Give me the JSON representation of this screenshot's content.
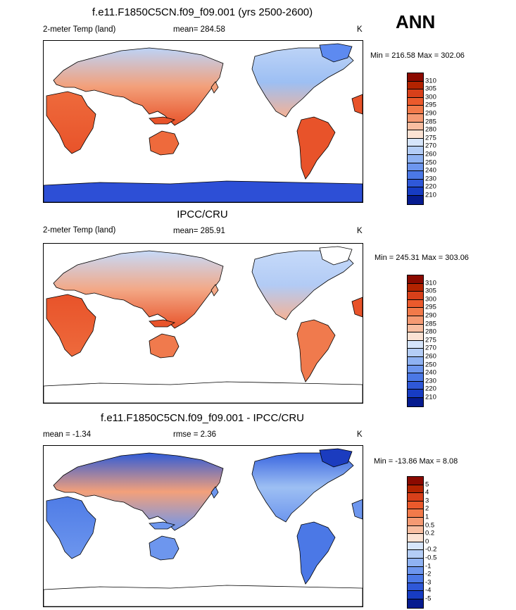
{
  "season": "ANN",
  "panels": [
    {
      "title": "f.e11.F1850C5CN.f09_f09.001 (yrs 2500-2600)",
      "variable": "2-meter Temp (land)",
      "stat1": "mean= 284.58",
      "stat2": "",
      "units": "K",
      "minmax": "Min = 216.58 Max = 302.06",
      "colorbar": {
        "labels": [
          "310",
          "305",
          "300",
          "295",
          "290",
          "285",
          "280",
          "275",
          "270",
          "260",
          "250",
          "240",
          "230",
          "220",
          "210"
        ],
        "colors": [
          "#8b0a00",
          "#b32300",
          "#d8401a",
          "#eb5a2c",
          "#f27a4a",
          "#f59a73",
          "#f8bea1",
          "#fbe2d3",
          "#d6e5fb",
          "#b4cdf6",
          "#8fb2f2",
          "#6d96ee",
          "#4b78e6",
          "#2f58d8",
          "#173cc3",
          "#061b8f"
        ]
      },
      "map_style": "model"
    },
    {
      "title": "IPCC/CRU",
      "variable": "2-meter Temp (land)",
      "stat1": "mean= 285.91",
      "stat2": "",
      "units": "K",
      "minmax": "Min = 245.31 Max = 303.06",
      "colorbar": {
        "labels": [
          "310",
          "305",
          "300",
          "295",
          "290",
          "285",
          "280",
          "275",
          "270",
          "260",
          "250",
          "240",
          "230",
          "220",
          "210"
        ],
        "colors": [
          "#8b0a00",
          "#b32300",
          "#d8401a",
          "#eb5a2c",
          "#f27a4a",
          "#f59a73",
          "#f8bea1",
          "#fbe2d3",
          "#d6e5fb",
          "#b4cdf6",
          "#8fb2f2",
          "#6d96ee",
          "#4b78e6",
          "#2f58d8",
          "#173cc3",
          "#061b8f"
        ]
      },
      "map_style": "obs"
    },
    {
      "title": "f.e11.F1850C5CN.f09_f09.001 - IPCC/CRU",
      "variable": "",
      "stat1": "mean =  -1.34",
      "stat2": "rmse =   2.36",
      "units": "K",
      "minmax": "Min = -13.86 Max =   8.08",
      "colorbar": {
        "labels": [
          "5",
          "4",
          "3",
          "2",
          "1",
          "0.5",
          "0.2",
          "0",
          "-0.2",
          "-0.5",
          "-1",
          "-2",
          "-3",
          "-4",
          "-5"
        ],
        "colors": [
          "#8b0a00",
          "#b32300",
          "#d8401a",
          "#eb5a2c",
          "#f27a4a",
          "#f59a73",
          "#f8bea1",
          "#fbe2d3",
          "#d6e5fb",
          "#b4cdf6",
          "#8fb2f2",
          "#6d96ee",
          "#4b78e6",
          "#2f58d8",
          "#173cc3",
          "#061b8f"
        ]
      },
      "map_style": "diff"
    }
  ]
}
